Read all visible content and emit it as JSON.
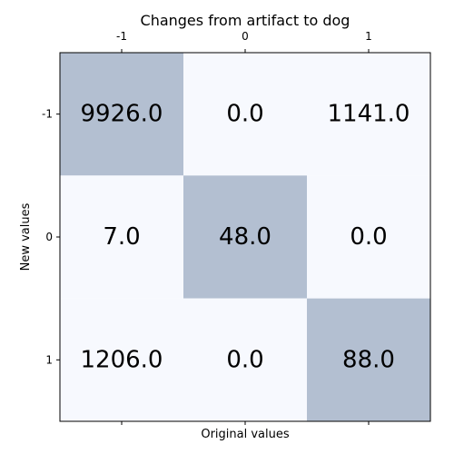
{
  "chart_data": {
    "type": "heatmap",
    "title": "Changes from artifact to dog",
    "xlabel": "Original values",
    "ylabel": "New values",
    "x_categories": [
      "-1",
      "0",
      "1"
    ],
    "y_categories": [
      "-1",
      "0",
      "1"
    ],
    "values": [
      [
        9926.0,
        0.0,
        1141.0
      ],
      [
        7.0,
        48.0,
        0.0
      ],
      [
        1206.0,
        0.0,
        88.0
      ]
    ],
    "cell_labels": [
      [
        "9926.0",
        "0.0",
        "1141.0"
      ],
      [
        "7.0",
        "48.0",
        "0.0"
      ],
      [
        "1206.0",
        "0.0",
        "88.0"
      ]
    ],
    "highlighted_cells": [
      [
        0,
        0
      ],
      [
        1,
        1
      ],
      [
        2,
        2
      ]
    ],
    "colors": {
      "highlight": "#b3bfd1",
      "background": "#f7f9fe",
      "frame": "#000000",
      "text": "#000000"
    }
  }
}
